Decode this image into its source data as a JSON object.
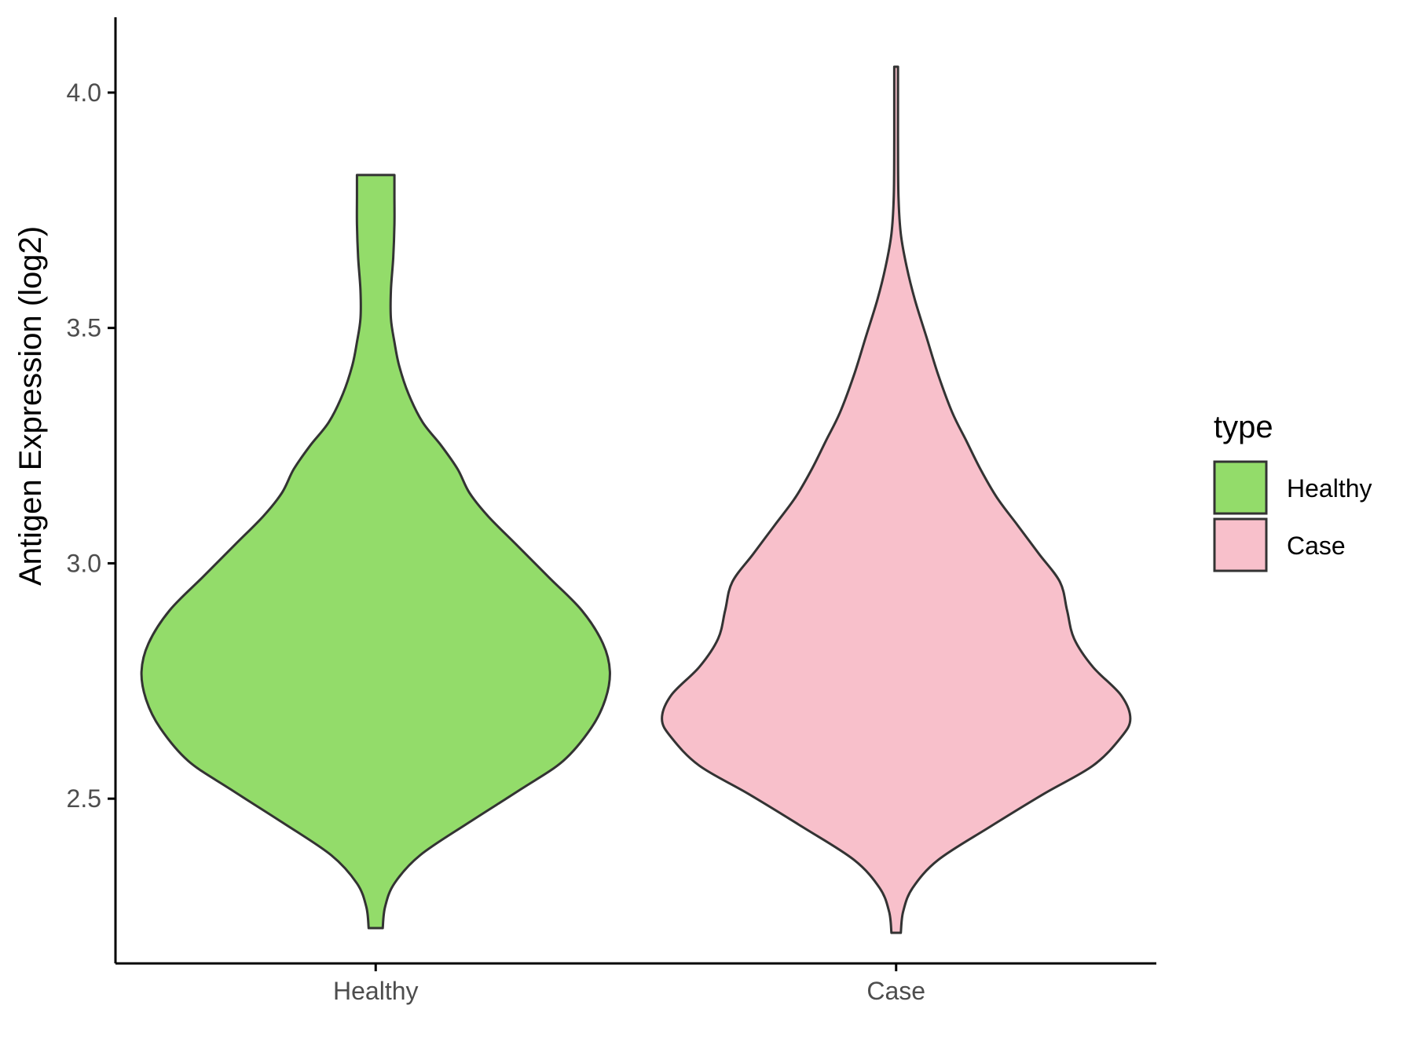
{
  "chart_data": {
    "type": "violin",
    "title": "",
    "xlabel": "",
    "ylabel": "Antigen Expression (log2)",
    "categories": [
      "Healthy",
      "Case"
    ],
    "ylim": [
      2.15,
      4.16
    ],
    "yticks": [
      2.5,
      3.0,
      3.5,
      4.0
    ],
    "ytick_labels": [
      "2.5",
      "3.0",
      "3.5",
      "4.0"
    ],
    "grid": false,
    "legend": {
      "title": "type",
      "position": "right",
      "entries": [
        {
          "label": "Healthy",
          "color": "#93dc6a"
        },
        {
          "label": "Case",
          "color": "#f8c0cb"
        }
      ]
    },
    "series": [
      {
        "name": "Healthy",
        "color": "#93dc6a",
        "y_min": 2.225,
        "y_max": 3.825,
        "density_profile": [
          [
            2.225,
            0.03
          ],
          [
            2.27,
            0.04
          ],
          [
            2.32,
            0.08
          ],
          [
            2.38,
            0.19
          ],
          [
            2.45,
            0.4
          ],
          [
            2.52,
            0.62
          ],
          [
            2.58,
            0.8
          ],
          [
            2.65,
            0.92
          ],
          [
            2.71,
            0.98
          ],
          [
            2.77,
            1.0
          ],
          [
            2.83,
            0.97
          ],
          [
            2.9,
            0.88
          ],
          [
            2.97,
            0.74
          ],
          [
            3.04,
            0.6
          ],
          [
            3.1,
            0.48
          ],
          [
            3.15,
            0.4
          ],
          [
            3.2,
            0.35
          ],
          [
            3.25,
            0.28
          ],
          [
            3.3,
            0.2
          ],
          [
            3.36,
            0.14
          ],
          [
            3.42,
            0.1
          ],
          [
            3.47,
            0.08
          ],
          [
            3.52,
            0.065
          ],
          [
            3.58,
            0.065
          ],
          [
            3.65,
            0.075
          ],
          [
            3.72,
            0.08
          ],
          [
            3.78,
            0.08
          ],
          [
            3.825,
            0.08
          ]
        ]
      },
      {
        "name": "Case",
        "color": "#f8c0cb",
        "y_min": 2.215,
        "y_max": 4.055,
        "density_profile": [
          [
            2.215,
            0.02
          ],
          [
            2.26,
            0.03
          ],
          [
            2.31,
            0.07
          ],
          [
            2.37,
            0.18
          ],
          [
            2.44,
            0.4
          ],
          [
            2.51,
            0.63
          ],
          [
            2.57,
            0.84
          ],
          [
            2.63,
            0.96
          ],
          [
            2.67,
            1.0
          ],
          [
            2.72,
            0.96
          ],
          [
            2.78,
            0.84
          ],
          [
            2.84,
            0.76
          ],
          [
            2.9,
            0.73
          ],
          [
            2.96,
            0.7
          ],
          [
            3.02,
            0.61
          ],
          [
            3.08,
            0.52
          ],
          [
            3.14,
            0.43
          ],
          [
            3.2,
            0.36
          ],
          [
            3.26,
            0.3
          ],
          [
            3.32,
            0.24
          ],
          [
            3.4,
            0.18
          ],
          [
            3.48,
            0.13
          ],
          [
            3.56,
            0.08
          ],
          [
            3.63,
            0.045
          ],
          [
            3.7,
            0.02
          ],
          [
            3.78,
            0.01
          ],
          [
            3.9,
            0.008
          ],
          [
            4.0,
            0.008
          ],
          [
            4.055,
            0.008
          ]
        ]
      }
    ]
  }
}
